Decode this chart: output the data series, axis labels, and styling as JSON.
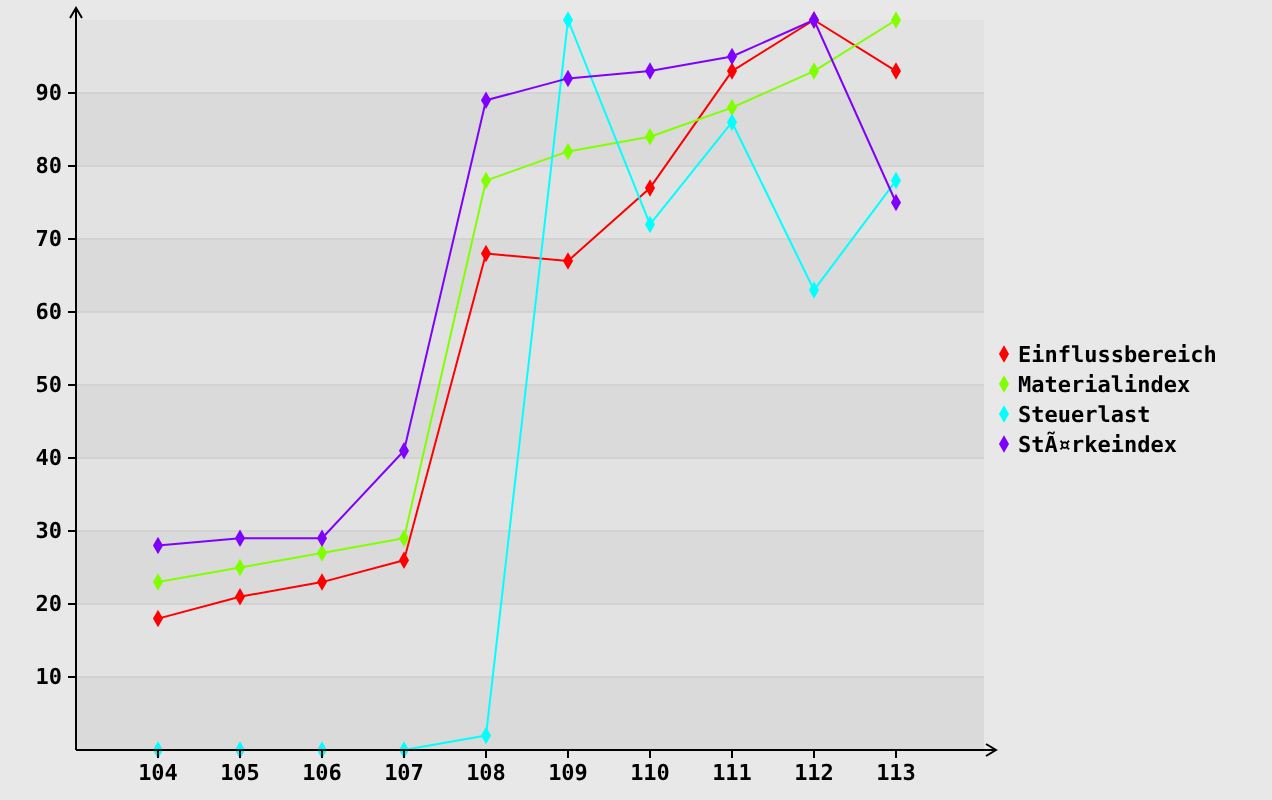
{
  "chart_data": {
    "type": "line",
    "categories": [
      "104",
      "105",
      "106",
      "107",
      "108",
      "109",
      "110",
      "111",
      "112",
      "113"
    ],
    "series": [
      {
        "name": "Einflussbereich",
        "color": "#ff0000",
        "values": [
          18,
          21,
          23,
          26,
          68,
          67,
          77,
          93,
          100,
          93
        ]
      },
      {
        "name": "Materialindex",
        "color": "#80ff00",
        "values": [
          23,
          25,
          27,
          29,
          78,
          82,
          84,
          88,
          93,
          100
        ]
      },
      {
        "name": "Steuerlast",
        "color": "#00ffff",
        "values": [
          0,
          0,
          0,
          0,
          2,
          100,
          72,
          86,
          63,
          78
        ]
      },
      {
        "name": "StÃ¤rkeindex",
        "color": "#8000ff",
        "values": [
          28,
          29,
          29,
          41,
          89,
          92,
          93,
          95,
          100,
          75
        ]
      }
    ],
    "ylim": [
      0,
      100
    ],
    "yticks": [
      10,
      20,
      30,
      40,
      50,
      60,
      70,
      80,
      90
    ],
    "grid": "y",
    "legend": "right",
    "marker": "diamond"
  }
}
